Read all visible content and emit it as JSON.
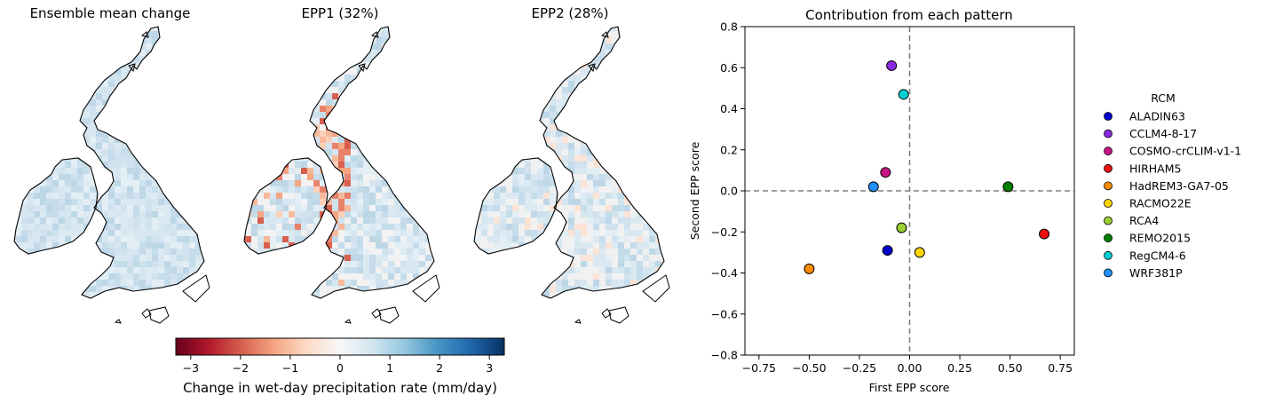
{
  "maps": [
    {
      "title": "Ensemble mean change"
    },
    {
      "title": "EPP1 (32%)"
    },
    {
      "title": "EPP2 (28%)"
    }
  ],
  "colorbar": {
    "label": "Change in wet-day precipitation rate (mm/day)",
    "ticks": [
      -3,
      -2,
      -1,
      0,
      1,
      2,
      3
    ],
    "tick_labels": [
      "−3",
      "−2",
      "−1",
      "0",
      "1",
      "2",
      "3"
    ],
    "range": [
      -3.3,
      3.3
    ],
    "colormap": [
      "#67001f",
      "#b2182b",
      "#d6604d",
      "#f4a582",
      "#fddbc7",
      "#f7f7f7",
      "#d1e5f0",
      "#92c5de",
      "#4393c3",
      "#2166ac",
      "#053061"
    ]
  },
  "chart_data": {
    "type": "scatter",
    "title": "Contribution from each pattern",
    "xlabel": "First EPP score",
    "ylabel": "Second EPP score",
    "xlim": [
      -0.82,
      0.82
    ],
    "ylim": [
      -0.8,
      0.8
    ],
    "xticks": [
      -0.75,
      -0.5,
      -0.25,
      0.0,
      0.25,
      0.5,
      0.75
    ],
    "xtick_labels": [
      "−0.75",
      "−0.50",
      "−0.25",
      "0.00",
      "0.25",
      "0.50",
      "0.75"
    ],
    "yticks": [
      -0.8,
      -0.6,
      -0.4,
      -0.2,
      0.0,
      0.2,
      0.4,
      0.6,
      0.8
    ],
    "ytick_labels": [
      "−0.8",
      "−0.6",
      "−0.4",
      "−0.2",
      "0.0",
      "0.2",
      "0.4",
      "0.6",
      "0.8"
    ],
    "legend_title": "RCM",
    "legend_position": "outside-right",
    "reference_lines": {
      "x": 0,
      "y": 0,
      "style": "dashed",
      "color": "#808080"
    },
    "series": [
      {
        "name": "ALADIN63",
        "color": "#0000cd",
        "x": -0.11,
        "y": -0.29
      },
      {
        "name": "CCLM4-8-17",
        "color": "#8a2be2",
        "x": -0.09,
        "y": 0.61
      },
      {
        "name": "COSMO-crCLIM-v1-1",
        "color": "#c71585",
        "x": -0.12,
        "y": 0.09
      },
      {
        "name": "HIRHAM5",
        "color": "#ee1111",
        "x": 0.67,
        "y": -0.21
      },
      {
        "name": "HadREM3-GA7-05",
        "color": "#ff8c00",
        "x": -0.5,
        "y": -0.38
      },
      {
        "name": "RACMO22E",
        "color": "#ffd700",
        "x": 0.05,
        "y": -0.3
      },
      {
        "name": "RCA4",
        "color": "#9acd32",
        "x": -0.04,
        "y": -0.18
      },
      {
        "name": "REMO2015",
        "color": "#008000",
        "x": 0.49,
        "y": 0.02
      },
      {
        "name": "RegCM4-6",
        "color": "#00ced1",
        "x": -0.03,
        "y": 0.47
      },
      {
        "name": "WRF381P",
        "color": "#1e90ff",
        "x": -0.18,
        "y": 0.02
      }
    ]
  }
}
